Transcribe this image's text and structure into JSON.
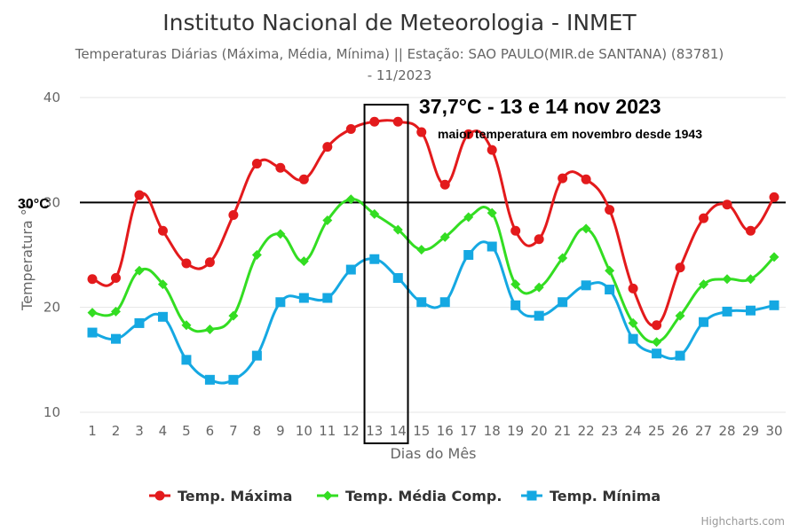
{
  "chart_data": {
    "type": "line",
    "title": "Instituto Nacional de Meteorologia - INMET",
    "subtitle_line1": "Temperaturas Diárias (Máxima, Média, Mínima) || Estação: SAO PAULO(MIR.de SANTANA) (83781)",
    "subtitle_line2": "- 11/2023",
    "xlabel": "Dias do Mês",
    "ylabel": "Temperatura °C",
    "ylim": [
      10,
      40
    ],
    "yticks": [
      10,
      20,
      30,
      40
    ],
    "grid": true,
    "legend_position": "bottom-center",
    "categories": [
      "1",
      "2",
      "3",
      "4",
      "5",
      "6",
      "7",
      "8",
      "9",
      "10",
      "11",
      "12",
      "13",
      "14",
      "15",
      "16",
      "17",
      "18",
      "19",
      "20",
      "21",
      "22",
      "23",
      "24",
      "25",
      "26",
      "27",
      "28",
      "29",
      "30"
    ],
    "series": [
      {
        "name": "Temp. Máxima",
        "color": "#e31a1c",
        "marker": "circle",
        "values": [
          22.7,
          22.8,
          30.7,
          27.3,
          24.2,
          24.3,
          28.8,
          33.7,
          33.3,
          32.2,
          35.3,
          37.0,
          37.7,
          37.7,
          36.7,
          31.7,
          36.5,
          35.0,
          27.3,
          26.5,
          32.3,
          32.2,
          29.3,
          21.8,
          18.3,
          23.8,
          28.5,
          29.8,
          27.3,
          30.5
        ]
      },
      {
        "name": "Temp. Média Comp.",
        "color": "#33dd22",
        "marker": "diamond",
        "values": [
          19.5,
          19.6,
          23.5,
          22.2,
          18.3,
          17.9,
          19.2,
          25.0,
          27.0,
          24.4,
          28.3,
          30.3,
          28.9,
          27.4,
          25.5,
          26.7,
          28.6,
          29.0,
          22.2,
          21.9,
          24.7,
          27.5,
          23.5,
          18.5,
          16.7,
          19.2,
          22.2,
          22.7,
          22.7,
          24.8
        ]
      },
      {
        "name": "Temp. Mínima",
        "color": "#15a8e2",
        "marker": "square",
        "values": [
          17.6,
          17.0,
          18.5,
          19.1,
          15.0,
          13.1,
          13.1,
          15.4,
          20.5,
          20.9,
          20.9,
          23.6,
          24.6,
          22.8,
          20.5,
          20.5,
          25.0,
          25.8,
          20.2,
          19.2,
          20.5,
          22.1,
          21.7,
          17.0,
          15.6,
          15.4,
          18.6,
          19.6,
          19.7,
          20.2
        ]
      }
    ],
    "reference_line": {
      "value": 30,
      "label": "30°C"
    },
    "highlight": {
      "days": [
        13,
        14
      ]
    },
    "annotation": {
      "headline": "37,7°C - 13 e 14 nov 2023",
      "note": "maior temperatura em novembro desde 1943"
    },
    "credits": "Highcharts.com"
  }
}
